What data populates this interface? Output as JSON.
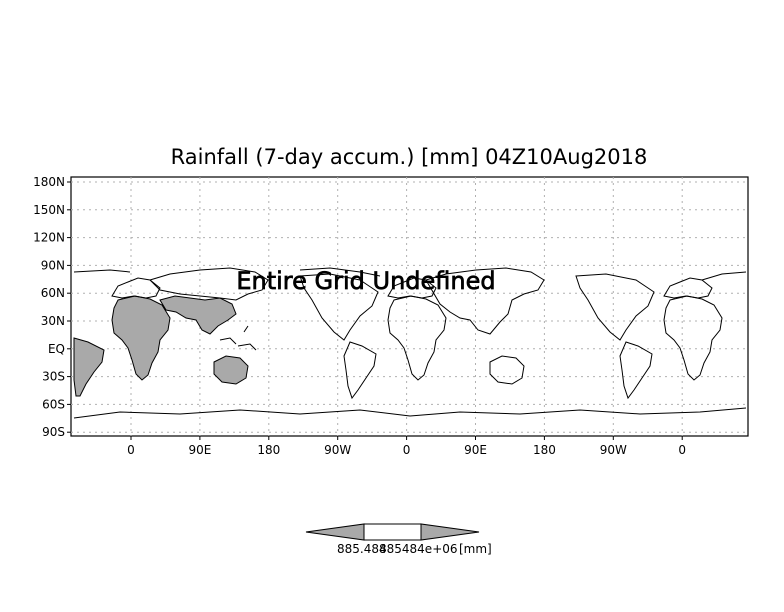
{
  "title": "Rainfall (7-day accum.) [mm] 04Z10Aug2018",
  "watermark": "Entire Grid Undefined",
  "lat_ticks": [
    "180N",
    "150N",
    "120N",
    "90N",
    "60N",
    "30N",
    "EQ",
    "30S",
    "60S",
    "90S"
  ],
  "lon_ticks": [
    "0",
    "90E",
    "180",
    "90W",
    "0",
    "90E",
    "180",
    "90W",
    "0"
  ],
  "colorbar": {
    "left_label": "885.484",
    "middle_label": "885484e+06",
    "unit_label": "[mm]"
  },
  "colors": {
    "land_fill": "#a9a9a9",
    "grid": "#b0b0b0",
    "outline": "#000000"
  }
}
